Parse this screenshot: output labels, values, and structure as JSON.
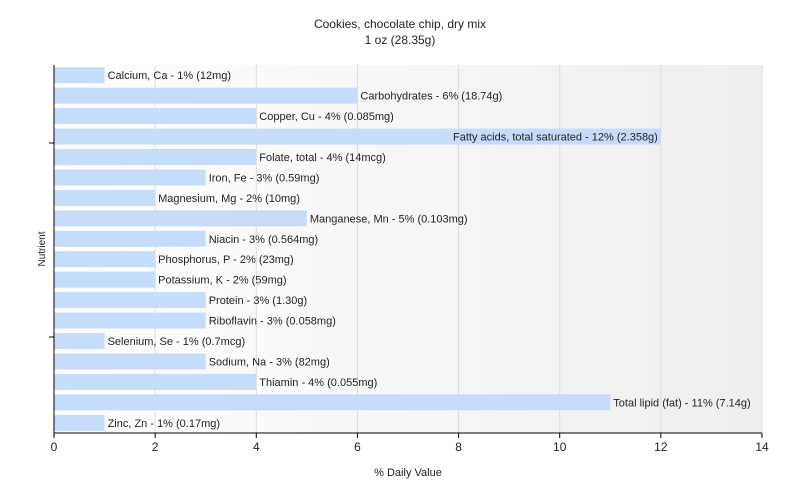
{
  "chart_data": {
    "type": "bar",
    "orientation": "horizontal",
    "title": "Cookies, chocolate chip, dry mix",
    "subtitle": "1 oz (28.35g)",
    "xlabel": "% Daily Value",
    "ylabel": "Nutrient",
    "xlim": [
      0,
      14
    ],
    "xticks": [
      0,
      2,
      4,
      6,
      8,
      10,
      12,
      14
    ],
    "grid": true,
    "bar_color": "#c5dcfb",
    "categories": [
      "Calcium, Ca",
      "Carbohydrates",
      "Copper, Cu",
      "Fatty acids, total saturated",
      "Folate, total",
      "Iron, Fe",
      "Magnesium, Mg",
      "Manganese, Mn",
      "Niacin",
      "Phosphorus, P",
      "Potassium, K",
      "Protein",
      "Riboflavin",
      "Selenium, Se",
      "Sodium, Na",
      "Thiamin",
      "Total lipid (fat)",
      "Zinc, Zn"
    ],
    "values": [
      1,
      6,
      4,
      12,
      4,
      3,
      2,
      5,
      3,
      2,
      2,
      3,
      3,
      1,
      3,
      4,
      11,
      1
    ],
    "labels": [
      "Calcium, Ca - 1% (12mg)",
      "Carbohydrates - 6% (18.74g)",
      "Copper, Cu - 4% (0.085mg)",
      "Fatty acids, total saturated - 12% (2.358g)",
      "Folate, total - 4% (14mcg)",
      "Iron, Fe - 3% (0.59mg)",
      "Magnesium, Mg - 2% (10mg)",
      "Manganese, Mn - 5% (0.103mg)",
      "Niacin - 3% (0.564mg)",
      "Phosphorus, P - 2% (23mg)",
      "Potassium, K - 2% (59mg)",
      "Protein - 3% (1.30g)",
      "Riboflavin - 3% (0.058mg)",
      "Selenium, Se - 1% (0.7mcg)",
      "Sodium, Na - 3% (82mg)",
      "Thiamin - 4% (0.055mg)",
      "Total lipid (fat) - 11% (7.14g)",
      "Zinc, Zn - 1% (0.17mg)"
    ]
  }
}
